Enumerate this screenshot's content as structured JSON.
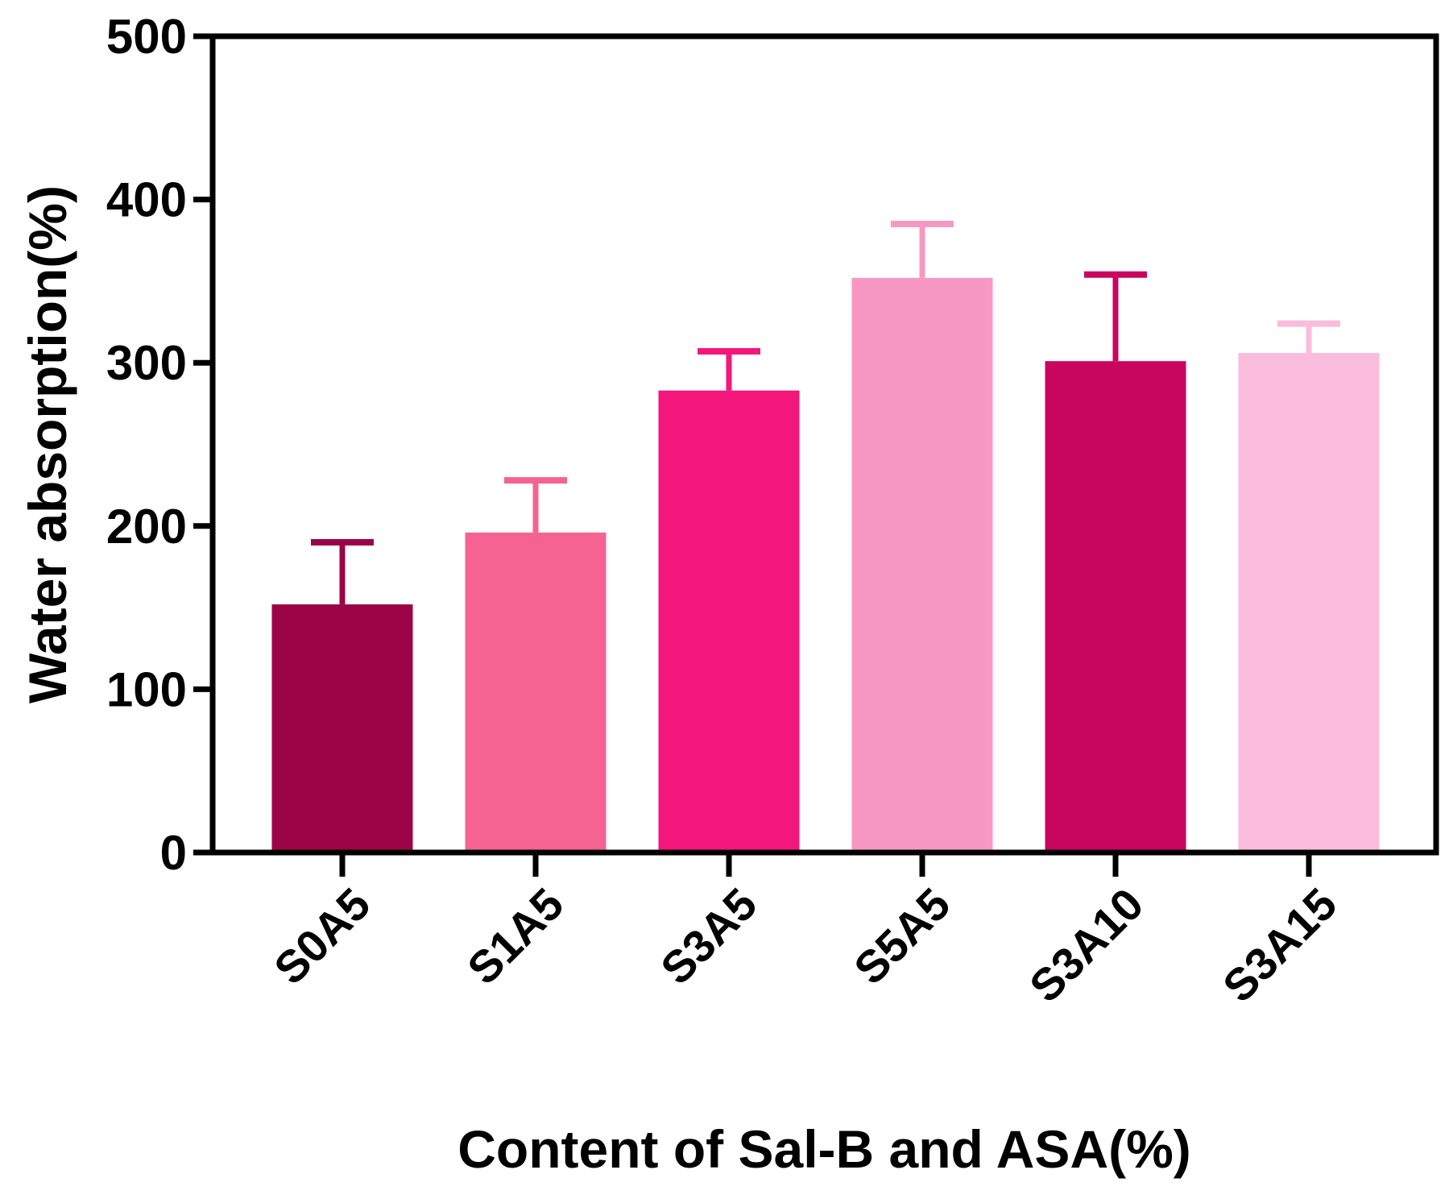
{
  "chart_data": {
    "type": "bar",
    "title": "",
    "xlabel": "Content of Sal-B and ASA(%)",
    "ylabel": "Water absorption(%)",
    "ylim": [
      0,
      500
    ],
    "yticks": [
      0,
      100,
      200,
      300,
      400,
      500
    ],
    "yticks_labels": [
      "0",
      "100",
      "200",
      "300",
      "400",
      "500"
    ],
    "categories": [
      "S0A5",
      "S1A5",
      "S3A5",
      "S5A5",
      "S3A10",
      "S3A15"
    ],
    "values": [
      152,
      196,
      283,
      352,
      301,
      306
    ],
    "errors": [
      38,
      32,
      24,
      33,
      53,
      18
    ],
    "colors": [
      "#9b0548",
      "#f56392",
      "#f3177c",
      "#f798c4",
      "#c8065f",
      "#f9bcdc"
    ],
    "error_colors": [
      "#9b0548",
      "#f56392",
      "#f3177c",
      "#f798c4",
      "#c8065f",
      "#f9bcdc"
    ],
    "grid": false,
    "legend": "none"
  }
}
